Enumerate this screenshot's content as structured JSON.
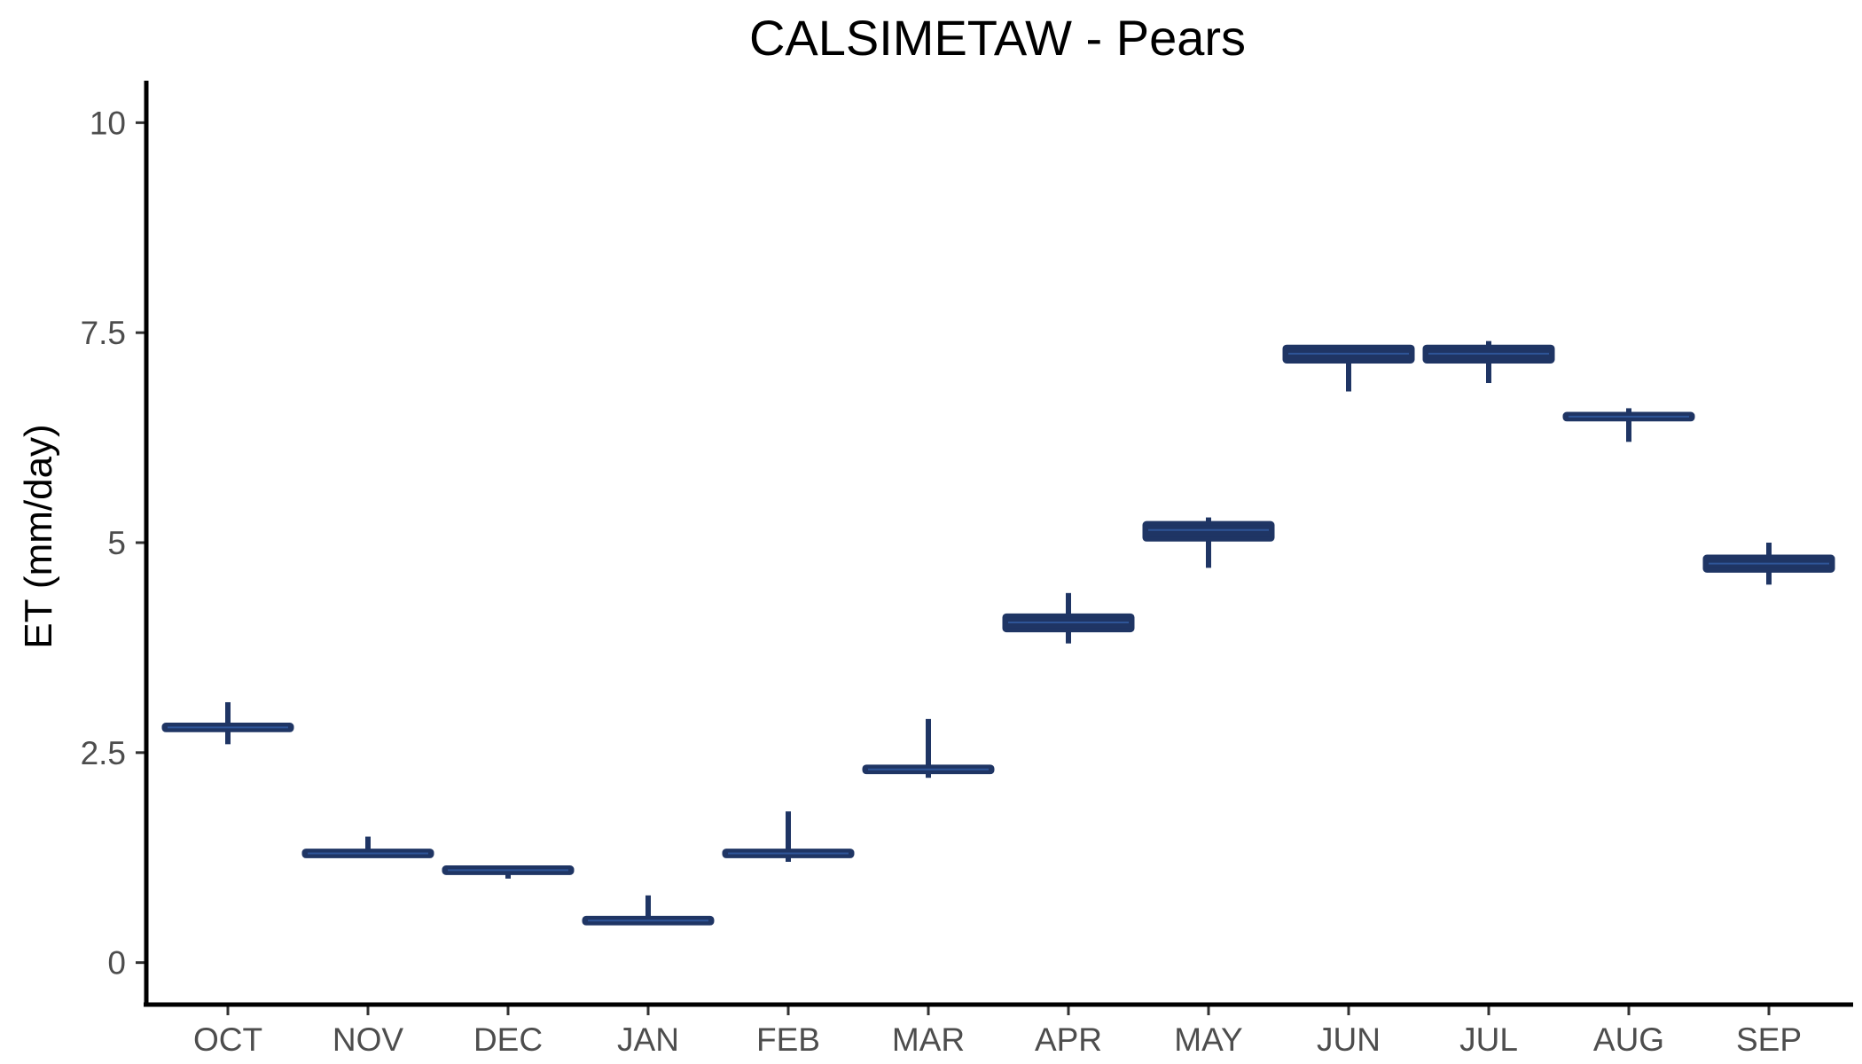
{
  "chart_data": {
    "type": "boxplot",
    "title": "CALSIMETAW - Pears",
    "xlabel": "",
    "ylabel": "ET (mm/day)",
    "ylim": [
      -0.5,
      10.5
    ],
    "yticks": [
      0,
      2.5,
      5,
      7.5,
      10
    ],
    "ytick_labels": [
      "0",
      "2.5",
      "5",
      "7.5",
      "10"
    ],
    "grid": false,
    "legend": "none",
    "colors": {
      "box": "#1f3564",
      "median": "#2f5597",
      "axis": "#000000"
    },
    "categories": [
      "OCT",
      "NOV",
      "DEC",
      "JAN",
      "FEB",
      "MAR",
      "APR",
      "MAY",
      "JUN",
      "JUL",
      "AUG",
      "SEP"
    ],
    "boxes": [
      {
        "label": "OCT",
        "min": 2.6,
        "q1": 2.78,
        "median": 2.8,
        "q3": 2.82,
        "max": 3.1
      },
      {
        "label": "NOV",
        "min": 1.28,
        "q1": 1.28,
        "median": 1.3,
        "q3": 1.32,
        "max": 1.5
      },
      {
        "label": "DEC",
        "min": 1.0,
        "q1": 1.08,
        "median": 1.1,
        "q3": 1.12,
        "max": 1.12
      },
      {
        "label": "JAN",
        "min": 0.48,
        "q1": 0.48,
        "median": 0.5,
        "q3": 0.52,
        "max": 0.8
      },
      {
        "label": "FEB",
        "min": 1.2,
        "q1": 1.28,
        "median": 1.3,
        "q3": 1.32,
        "max": 1.8
      },
      {
        "label": "MAR",
        "min": 2.2,
        "q1": 2.28,
        "median": 2.3,
        "q3": 2.32,
        "max": 2.9
      },
      {
        "label": "APR",
        "min": 3.8,
        "q1": 3.97,
        "median": 4.05,
        "q3": 4.12,
        "max": 4.4
      },
      {
        "label": "MAY",
        "min": 4.7,
        "q1": 5.05,
        "median": 5.15,
        "q3": 5.22,
        "max": 5.3
      },
      {
        "label": "JUN",
        "min": 6.8,
        "q1": 7.17,
        "median": 7.25,
        "q3": 7.32,
        "max": 7.32
      },
      {
        "label": "JUL",
        "min": 6.9,
        "q1": 7.17,
        "median": 7.25,
        "q3": 7.32,
        "max": 7.4
      },
      {
        "label": "AUG",
        "min": 6.2,
        "q1": 6.48,
        "median": 6.5,
        "q3": 6.52,
        "max": 6.6
      },
      {
        "label": "SEP",
        "min": 4.5,
        "q1": 4.68,
        "median": 4.75,
        "q3": 4.82,
        "max": 5.0
      }
    ]
  }
}
